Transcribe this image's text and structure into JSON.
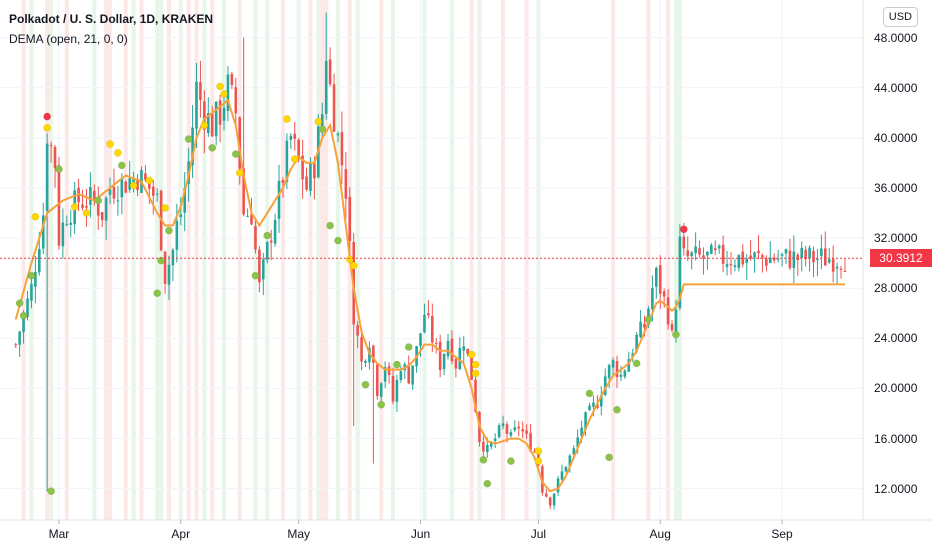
{
  "header": {
    "title": "Polkadot / U. S. Dollar, 1D, KRAKEN",
    "indicator": "DEMA (open, 21, 0, 0)",
    "currency_button": "USD"
  },
  "last_price": {
    "label": "30.3912",
    "value": 30.3912,
    "color": "#f23645"
  },
  "colors": {
    "up": "#26a69a",
    "down": "#ef5350",
    "dema": "#f7a13a",
    "dot_green": "#8bc34a",
    "dot_yellow": "#ffd600",
    "dot_red": "#f23645",
    "bg_green": "#e8f5e9",
    "bg_red": "#fde8e8"
  },
  "chart_data": {
    "type": "candlestick",
    "title": "Polkadot / U. S. Dollar, 1D, KRAKEN",
    "series_name": "DEMA (open, 21, 0, 0)",
    "ylim": [
      9.5,
      51
    ],
    "y_ticks": [
      12,
      16,
      20,
      24,
      28,
      32,
      36,
      40,
      44,
      48
    ],
    "y_tick_labels": [
      "12.0000",
      "16.0000",
      "20.0000",
      "24.0000",
      "28.0000",
      "32.0000",
      "36.0000",
      "40.0000",
      "44.0000",
      "48.0000"
    ],
    "x_labels": [
      {
        "label": "Mar",
        "day": 35
      },
      {
        "label": "Apr",
        "day": 66
      },
      {
        "label": "May",
        "day": 96
      },
      {
        "label": "Jun",
        "day": 127
      },
      {
        "label": "Jul",
        "day": 157
      },
      {
        "label": "Aug",
        "day": 188
      },
      {
        "label": "Sep",
        "day": 219
      }
    ],
    "x_range": [
      24,
      235
    ],
    "close_anchors": [
      [
        24,
        23.5
      ],
      [
        28,
        28
      ],
      [
        31,
        34
      ],
      [
        32,
        40.5
      ],
      [
        34,
        38
      ],
      [
        35,
        32
      ],
      [
        37,
        34
      ],
      [
        40,
        35
      ],
      [
        44,
        35
      ],
      [
        46,
        34
      ],
      [
        48,
        36
      ],
      [
        52,
        36.5
      ],
      [
        55,
        37
      ],
      [
        58,
        36
      ],
      [
        60,
        35
      ],
      [
        62,
        29
      ],
      [
        64,
        31
      ],
      [
        65,
        33
      ],
      [
        66,
        34
      ],
      [
        68,
        38
      ],
      [
        70,
        44
      ],
      [
        72,
        42
      ],
      [
        74,
        41
      ],
      [
        76,
        42
      ],
      [
        78,
        44
      ],
      [
        80,
        42
      ],
      [
        82,
        34
      ],
      [
        84,
        34
      ],
      [
        86,
        28
      ],
      [
        88,
        31
      ],
      [
        90,
        34
      ],
      [
        92,
        37
      ],
      [
        94,
        40
      ],
      [
        96,
        38
      ],
      [
        98,
        36
      ],
      [
        100,
        38
      ],
      [
        102,
        42
      ],
      [
        103,
        47
      ],
      [
        104,
        44
      ],
      [
        106,
        40
      ],
      [
        108,
        36
      ],
      [
        110,
        26
      ],
      [
        112,
        22
      ],
      [
        114,
        24
      ],
      [
        116,
        20
      ],
      [
        118,
        22
      ],
      [
        120,
        19
      ],
      [
        122,
        22
      ],
      [
        124,
        21
      ],
      [
        126,
        23
      ],
      [
        128,
        26
      ],
      [
        130,
        24
      ],
      [
        132,
        22
      ],
      [
        134,
        24
      ],
      [
        136,
        22
      ],
      [
        138,
        24
      ],
      [
        140,
        21
      ],
      [
        142,
        16
      ],
      [
        144,
        15
      ],
      [
        146,
        16
      ],
      [
        148,
        17
      ],
      [
        150,
        16
      ],
      [
        152,
        17
      ],
      [
        154,
        16
      ],
      [
        156,
        15
      ],
      [
        157,
        14
      ],
      [
        158,
        12
      ],
      [
        160,
        11
      ],
      [
        162,
        12.5
      ],
      [
        164,
        14
      ],
      [
        166,
        15
      ],
      [
        168,
        17
      ],
      [
        170,
        18
      ],
      [
        172,
        19
      ],
      [
        174,
        21
      ],
      [
        176,
        22
      ],
      [
        178,
        21
      ],
      [
        180,
        22.5
      ],
      [
        182,
        24
      ],
      [
        184,
        25
      ],
      [
        186,
        28
      ],
      [
        187,
        29
      ],
      [
        188,
        28
      ],
      [
        190,
        26
      ],
      [
        191,
        24
      ],
      [
        192,
        27
      ],
      [
        193,
        31.5
      ],
      [
        194,
        30.4
      ]
    ],
    "dema_anchors": [
      [
        24,
        25.5
      ],
      [
        28,
        30
      ],
      [
        32,
        34
      ],
      [
        36,
        35
      ],
      [
        40,
        35.5
      ],
      [
        44,
        35
      ],
      [
        48,
        36
      ],
      [
        52,
        37
      ],
      [
        56,
        36.5
      ],
      [
        60,
        34
      ],
      [
        62,
        33
      ],
      [
        64,
        33
      ],
      [
        66,
        34.5
      ],
      [
        68,
        37
      ],
      [
        70,
        40
      ],
      [
        72,
        41.5
      ],
      [
        74,
        42
      ],
      [
        76,
        42.5
      ],
      [
        78,
        43
      ],
      [
        80,
        41
      ],
      [
        82,
        37
      ],
      [
        84,
        34
      ],
      [
        86,
        33
      ],
      [
        88,
        34
      ],
      [
        90,
        35
      ],
      [
        92,
        36
      ],
      [
        94,
        37.5
      ],
      [
        96,
        38.5
      ],
      [
        98,
        38
      ],
      [
        100,
        38
      ],
      [
        102,
        40
      ],
      [
        104,
        41
      ],
      [
        106,
        38
      ],
      [
        108,
        33
      ],
      [
        110,
        28
      ],
      [
        112,
        24.5
      ],
      [
        114,
        22.8
      ],
      [
        116,
        22
      ],
      [
        118,
        21.5
      ],
      [
        120,
        21.5
      ],
      [
        122,
        21.5
      ],
      [
        124,
        21.8
      ],
      [
        126,
        22.5
      ],
      [
        128,
        23.5
      ],
      [
        130,
        23.5
      ],
      [
        132,
        23
      ],
      [
        134,
        23
      ],
      [
        136,
        22.5
      ],
      [
        138,
        22
      ],
      [
        140,
        20
      ],
      [
        142,
        17
      ],
      [
        144,
        15.8
      ],
      [
        146,
        15.6
      ],
      [
        148,
        15.8
      ],
      [
        150,
        16
      ],
      [
        152,
        16
      ],
      [
        154,
        15.6
      ],
      [
        156,
        14.5
      ],
      [
        157,
        13.5
      ],
      [
        158,
        12.5
      ],
      [
        160,
        11.8
      ],
      [
        162,
        12
      ],
      [
        164,
        13
      ],
      [
        166,
        14.5
      ],
      [
        168,
        16
      ],
      [
        170,
        17.5
      ],
      [
        172,
        18.8
      ],
      [
        174,
        20
      ],
      [
        176,
        21
      ],
      [
        178,
        21.5
      ],
      [
        180,
        22
      ],
      [
        182,
        23
      ],
      [
        184,
        24.5
      ],
      [
        186,
        26
      ],
      [
        187,
        26.8
      ],
      [
        188,
        27
      ],
      [
        190,
        26.5
      ],
      [
        191,
        26.2
      ],
      [
        192,
        26.5
      ],
      [
        193,
        27.2
      ],
      [
        194,
        28.3
      ]
    ],
    "wick_spikes": [
      {
        "day": 32,
        "low": 11.8
      },
      {
        "day": 103,
        "high": 50
      },
      {
        "day": 110,
        "low": 17
      },
      {
        "day": 115,
        "low": 14
      },
      {
        "day": 82,
        "high": 48
      }
    ],
    "signal_dots": [
      {
        "day": 25,
        "price": 26.8,
        "color": "green"
      },
      {
        "day": 26,
        "price": 25.8,
        "color": "green"
      },
      {
        "day": 28,
        "price": 29,
        "color": "green"
      },
      {
        "day": 29,
        "price": 33.7,
        "color": "yellow"
      },
      {
        "day": 32,
        "price": 40.8,
        "color": "yellow"
      },
      {
        "day": 32,
        "price": 41.7,
        "color": "red"
      },
      {
        "day": 33,
        "price": 11.8,
        "color": "green"
      },
      {
        "day": 35,
        "price": 37.5,
        "color": "green"
      },
      {
        "day": 39,
        "price": 34.5,
        "color": "yellow"
      },
      {
        "day": 42,
        "price": 34,
        "color": "yellow"
      },
      {
        "day": 45,
        "price": 35,
        "color": "green"
      },
      {
        "day": 48,
        "price": 39.5,
        "color": "yellow"
      },
      {
        "day": 50,
        "price": 38.8,
        "color": "yellow"
      },
      {
        "day": 51,
        "price": 37.8,
        "color": "green"
      },
      {
        "day": 54,
        "price": 36.2,
        "color": "yellow"
      },
      {
        "day": 58,
        "price": 36.6,
        "color": "yellow"
      },
      {
        "day": 60,
        "price": 27.6,
        "color": "green"
      },
      {
        "day": 61,
        "price": 30.2,
        "color": "green"
      },
      {
        "day": 62,
        "price": 34.4,
        "color": "yellow"
      },
      {
        "day": 63,
        "price": 32.6,
        "color": "green"
      },
      {
        "day": 68,
        "price": 39.9,
        "color": "green"
      },
      {
        "day": 72,
        "price": 41,
        "color": "yellow"
      },
      {
        "day": 74,
        "price": 39.2,
        "color": "green"
      },
      {
        "day": 76,
        "price": 44.1,
        "color": "yellow"
      },
      {
        "day": 77,
        "price": 43.5,
        "color": "yellow"
      },
      {
        "day": 80,
        "price": 38.7,
        "color": "green"
      },
      {
        "day": 81,
        "price": 37.2,
        "color": "yellow"
      },
      {
        "day": 85,
        "price": 29,
        "color": "green"
      },
      {
        "day": 88,
        "price": 32.2,
        "color": "green"
      },
      {
        "day": 93,
        "price": 41.5,
        "color": "yellow"
      },
      {
        "day": 95,
        "price": 38.3,
        "color": "yellow"
      },
      {
        "day": 101,
        "price": 41.3,
        "color": "yellow"
      },
      {
        "day": 102,
        "price": 40.7,
        "color": "green"
      },
      {
        "day": 104,
        "price": 33,
        "color": "green"
      },
      {
        "day": 106,
        "price": 31.8,
        "color": "green"
      },
      {
        "day": 109,
        "price": 30.3,
        "color": "yellow"
      },
      {
        "day": 110,
        "price": 29.8,
        "color": "yellow"
      },
      {
        "day": 113,
        "price": 20.3,
        "color": "green"
      },
      {
        "day": 117,
        "price": 18.7,
        "color": "green"
      },
      {
        "day": 121,
        "price": 21.9,
        "color": "green"
      },
      {
        "day": 124,
        "price": 23.3,
        "color": "green"
      },
      {
        "day": 140,
        "price": 22.7,
        "color": "yellow"
      },
      {
        "day": 141,
        "price": 21.9,
        "color": "yellow"
      },
      {
        "day": 141,
        "price": 21.2,
        "color": "yellow"
      },
      {
        "day": 143,
        "price": 14.3,
        "color": "green"
      },
      {
        "day": 144,
        "price": 12.4,
        "color": "green"
      },
      {
        "day": 150,
        "price": 14.2,
        "color": "green"
      },
      {
        "day": 157,
        "price": 15,
        "color": "yellow"
      },
      {
        "day": 157,
        "price": 14.2,
        "color": "yellow"
      },
      {
        "day": 170,
        "price": 19.6,
        "color": "green"
      },
      {
        "day": 175,
        "price": 14.5,
        "color": "green"
      },
      {
        "day": 177,
        "price": 18.3,
        "color": "green"
      },
      {
        "day": 182,
        "price": 22,
        "color": "green"
      },
      {
        "day": 185,
        "price": 25.5,
        "color": "green"
      },
      {
        "day": 192,
        "price": 24.3,
        "color": "green"
      },
      {
        "day": 194,
        "price": 32.7,
        "color": "red"
      }
    ],
    "bg_bands": [
      {
        "day": 26,
        "color": "red"
      },
      {
        "day": 28,
        "color": "green"
      },
      {
        "day": 32,
        "color": "red"
      },
      {
        "day": 33,
        "color": "green"
      },
      {
        "day": 37,
        "color": "red"
      },
      {
        "day": 44,
        "color": "green"
      },
      {
        "day": 47,
        "color": "red"
      },
      {
        "day": 48,
        "color": "red"
      },
      {
        "day": 52,
        "color": "red"
      },
      {
        "day": 54,
        "color": "green"
      },
      {
        "day": 56,
        "color": "red"
      },
      {
        "day": 60,
        "color": "green"
      },
      {
        "day": 61,
        "color": "green"
      },
      {
        "day": 63,
        "color": "red"
      },
      {
        "day": 66,
        "color": "green"
      },
      {
        "day": 68,
        "color": "red"
      },
      {
        "day": 70,
        "color": "red"
      },
      {
        "day": 72,
        "color": "green"
      },
      {
        "day": 74,
        "color": "red"
      },
      {
        "day": 77,
        "color": "green"
      },
      {
        "day": 81,
        "color": "red"
      },
      {
        "day": 85,
        "color": "green"
      },
      {
        "day": 88,
        "color": "green"
      },
      {
        "day": 92,
        "color": "red"
      },
      {
        "day": 96,
        "color": "green"
      },
      {
        "day": 99,
        "color": "red"
      },
      {
        "day": 101,
        "color": "green"
      },
      {
        "day": 102,
        "color": "red"
      },
      {
        "day": 103,
        "color": "red"
      },
      {
        "day": 106,
        "color": "green"
      },
      {
        "day": 109,
        "color": "red"
      },
      {
        "day": 111,
        "color": "green"
      },
      {
        "day": 117,
        "color": "red"
      },
      {
        "day": 120,
        "color": "green"
      },
      {
        "day": 128,
        "color": "green"
      },
      {
        "day": 135,
        "color": "green"
      },
      {
        "day": 140,
        "color": "red"
      },
      {
        "day": 142,
        "color": "green"
      },
      {
        "day": 148,
        "color": "red"
      },
      {
        "day": 154,
        "color": "red"
      },
      {
        "day": 157,
        "color": "green"
      },
      {
        "day": 176,
        "color": "red"
      },
      {
        "day": 185,
        "color": "red"
      },
      {
        "day": 190,
        "color": "red"
      },
      {
        "day": 192,
        "color": "green"
      },
      {
        "day": 193,
        "color": "green"
      }
    ]
  }
}
